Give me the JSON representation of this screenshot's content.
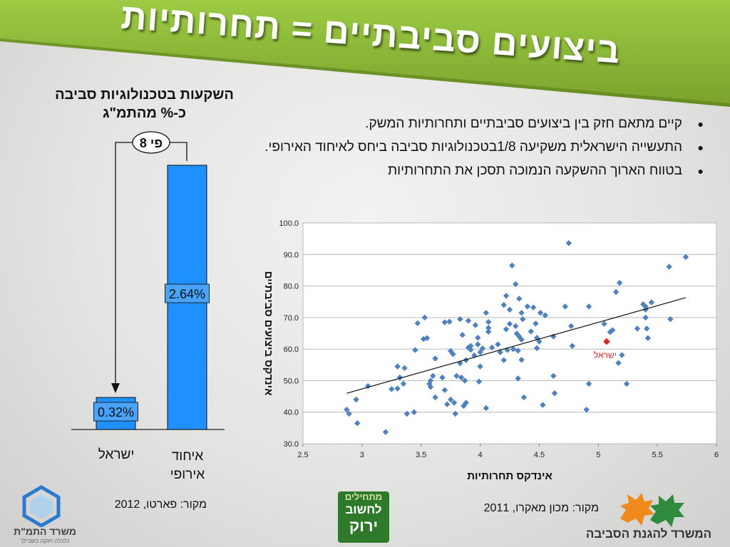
{
  "title": "ביצועים סביבתיים = תחרותיות",
  "left_chart": {
    "title_line1": "השקעות בטכנולוגיות סביבה",
    "title_line2": "כ-% מהתמ\"ג",
    "badge": "פי 8",
    "bars": [
      {
        "label_line1": "ישראל",
        "label_line2": "",
        "value": 0.32,
        "value_label": "0.32%"
      },
      {
        "label_line1": "איחוד",
        "label_line2": "אירופי",
        "value": 2.64,
        "value_label": "2.64%"
      }
    ],
    "source": "מקור: פארטו, 2012"
  },
  "bullets": [
    "קיים מתאם חזק בין ביצועים סביבתיים ותחרותיות המשק.",
    "התעשייה הישראלית משקיעה 1/8בטכנולוגיות סביבה ביחס לאיחוד האירופי.",
    "בטווח הארוך ההשקעה הנמוכה תסכן את התחרותיות"
  ],
  "chart_data": {
    "type": "scatter",
    "xlabel": "אינדקס תחרותיות",
    "ylabel": "אינדקס ביצועים סביבתיים",
    "xlim": [
      2.5,
      6
    ],
    "ylim": [
      30,
      100
    ],
    "xticks": [
      "2.5",
      "3",
      "3.5",
      "4",
      "4.5",
      "5",
      "5.5",
      "6"
    ],
    "yticks": [
      "30.0",
      "40.0",
      "50.0",
      "60.0",
      "70.0",
      "80.0",
      "90.0",
      "100.0"
    ],
    "grid": true,
    "points": [
      [
        2.87,
        40.8
      ],
      [
        2.89,
        39.5
      ],
      [
        2.95,
        44
      ],
      [
        2.96,
        36.5
      ],
      [
        3.05,
        48.3
      ],
      [
        3.2,
        33.7
      ],
      [
        3.25,
        47.3
      ],
      [
        3.3,
        54.5
      ],
      [
        3.32,
        51
      ],
      [
        3.3,
        47.5
      ],
      [
        3.35,
        49
      ],
      [
        3.36,
        54
      ],
      [
        3.38,
        39.5
      ],
      [
        3.44,
        40
      ],
      [
        3.45,
        59.7
      ],
      [
        3.47,
        68.2
      ],
      [
        3.52,
        63.2
      ],
      [
        3.53,
        70
      ],
      [
        3.55,
        63.5
      ],
      [
        3.57,
        49
      ],
      [
        3.58,
        50
      ],
      [
        3.58,
        48
      ],
      [
        3.6,
        51.5
      ],
      [
        3.62,
        57
      ],
      [
        3.62,
        44.7
      ],
      [
        3.68,
        51
      ],
      [
        3.7,
        68.5
      ],
      [
        3.7,
        47
      ],
      [
        3.72,
        42.5
      ],
      [
        3.74,
        68.7
      ],
      [
        3.75,
        44
      ],
      [
        3.75,
        59.4
      ],
      [
        3.77,
        58.4
      ],
      [
        3.78,
        43
      ],
      [
        3.79,
        39.5
      ],
      [
        3.8,
        51.5
      ],
      [
        3.83,
        55.5
      ],
      [
        3.83,
        69.5
      ],
      [
        3.84,
        51
      ],
      [
        3.85,
        64.5
      ],
      [
        3.86,
        42
      ],
      [
        3.87,
        50
      ],
      [
        3.88,
        43
      ],
      [
        3.88,
        56.5
      ],
      [
        3.9,
        60.5
      ],
      [
        3.9,
        69
      ],
      [
        3.92,
        61
      ],
      [
        3.92,
        59.8
      ],
      [
        3.95,
        58
      ],
      [
        3.96,
        67.6
      ],
      [
        3.98,
        63.6
      ],
      [
        3.98,
        61.5
      ],
      [
        3.99,
        49.7
      ],
      [
        4.0,
        59
      ],
      [
        4.0,
        54.5
      ],
      [
        4.02,
        60.2
      ],
      [
        4.05,
        41.3
      ],
      [
        4.05,
        71.5
      ],
      [
        4.07,
        68.6
      ],
      [
        4.07,
        66.7
      ],
      [
        4.07,
        65.5
      ],
      [
        4.1,
        60.5
      ],
      [
        4.15,
        61.5
      ],
      [
        4.17,
        59
      ],
      [
        4.2,
        56.5
      ],
      [
        4.2,
        74
      ],
      [
        4.22,
        76.9
      ],
      [
        4.22,
        66.3
      ],
      [
        4.23,
        59.7
      ],
      [
        4.25,
        72.5
      ],
      [
        4.25,
        68
      ],
      [
        4.27,
        86.5
      ],
      [
        4.28,
        60
      ],
      [
        4.3,
        80.6
      ],
      [
        4.3,
        67.3
      ],
      [
        4.31,
        64.9
      ],
      [
        4.32,
        59.5
      ],
      [
        4.32,
        50.7
      ],
      [
        4.33,
        76
      ],
      [
        4.33,
        64
      ],
      [
        4.35,
        71.5
      ],
      [
        4.35,
        56.6
      ],
      [
        4.35,
        63
      ],
      [
        4.36,
        69.5
      ],
      [
        4.37,
        44.7
      ],
      [
        4.4,
        73.5
      ],
      [
        4.43,
        65.6
      ],
      [
        4.45,
        73.2
      ],
      [
        4.47,
        68.1
      ],
      [
        4.48,
        60.3
      ],
      [
        4.48,
        63.6
      ],
      [
        4.5,
        62.4
      ],
      [
        4.51,
        71.5
      ],
      [
        4.53,
        42.3
      ],
      [
        4.55,
        70.7
      ],
      [
        4.62,
        64
      ],
      [
        4.62,
        51.5
      ],
      [
        4.63,
        46
      ],
      [
        4.72,
        73.5
      ],
      [
        4.75,
        93.6
      ],
      [
        4.77,
        67.3
      ],
      [
        4.78,
        61
      ],
      [
        4.9,
        40.8
      ],
      [
        4.92,
        49
      ],
      [
        4.92,
        73.5
      ],
      [
        5.05,
        68
      ],
      [
        5.1,
        65.4
      ],
      [
        5.12,
        66
      ],
      [
        5.15,
        78.1
      ],
      [
        5.17,
        55.6
      ],
      [
        5.18,
        81
      ],
      [
        5.2,
        58.1
      ],
      [
        5.24,
        49
      ],
      [
        5.33,
        66.5
      ],
      [
        5.38,
        74.2
      ],
      [
        5.4,
        70
      ],
      [
        5.4,
        73.5
      ],
      [
        5.4,
        72.5
      ],
      [
        5.41,
        66.5
      ],
      [
        5.42,
        63.5
      ],
      [
        5.45,
        74.8
      ],
      [
        5.6,
        86.1
      ],
      [
        5.61,
        69.5
      ],
      [
        5.74,
        89.2
      ]
    ],
    "highlight": {
      "label": "ישראל",
      "x": 5.07,
      "y": 62.4,
      "color": "#e02020"
    },
    "trendline": {
      "x": [
        2.87,
        5.74
      ],
      "y": [
        46.0,
        76.3
      ]
    },
    "point_color": "#4f81bd",
    "source": "מקור: מכון מאקרו, 2011"
  },
  "logos": {
    "economy_ministry": "משרד התמ\"ת",
    "economy_tagline": "כלכלה חזקה בשבילך",
    "green_campaign_line1": "מתחילים",
    "green_campaign_line2": "לחשוב",
    "green_campaign_line3": "ירוק",
    "environment_ministry": "המשרד להגנת הסביבה"
  },
  "colors": {
    "banner": "#8fb83a",
    "bar": "#1e90ff",
    "value_box": "#4aa3ff"
  }
}
